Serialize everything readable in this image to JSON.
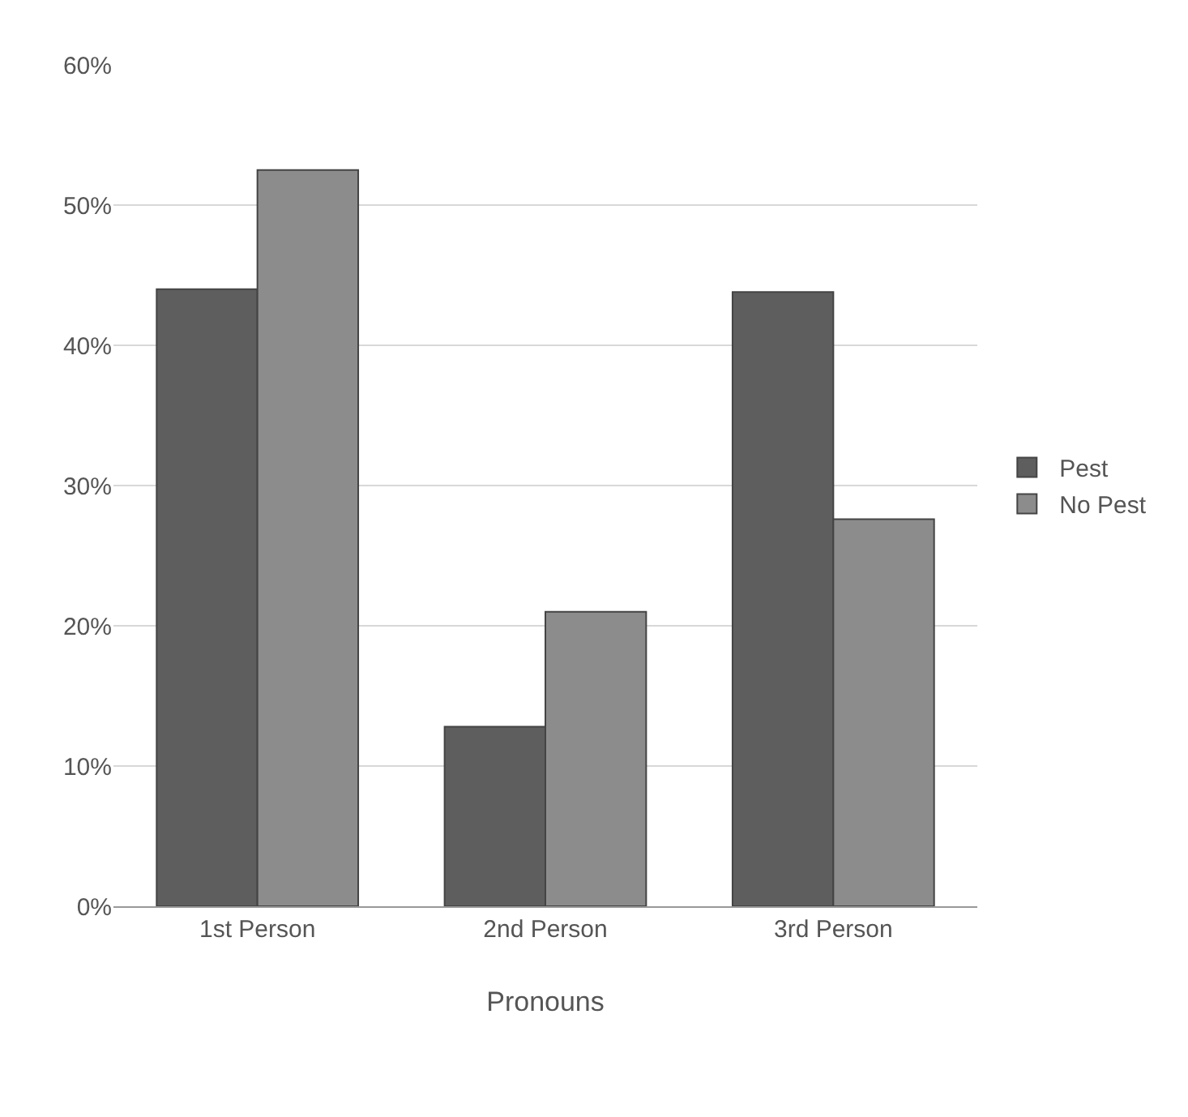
{
  "chart_data": {
    "type": "bar",
    "xlabel": "Pronouns",
    "categories": [
      "1st Person",
      "2nd Person",
      "3rd Person"
    ],
    "series": [
      {
        "name": "Pest",
        "color": "#5e5e5e",
        "values": [
          44,
          12.8,
          43.8
        ]
      },
      {
        "name": "No Pest",
        "color": "#8c8c8c",
        "values": [
          52.5,
          21,
          27.6
        ]
      }
    ],
    "ylim": [
      0,
      60
    ],
    "yticks": [
      {
        "value": 0,
        "label": "0%"
      },
      {
        "value": 10,
        "label": "10%"
      },
      {
        "value": 20,
        "label": "20%"
      },
      {
        "value": 30,
        "label": "30%"
      },
      {
        "value": 40,
        "label": "40%"
      },
      {
        "value": 50,
        "label": "50%"
      },
      {
        "value": 60,
        "label": "60%"
      }
    ],
    "grid": "y",
    "legend": "right"
  }
}
